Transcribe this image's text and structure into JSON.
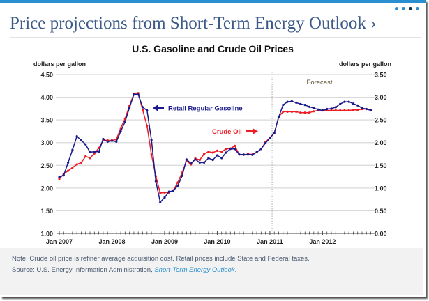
{
  "header": {
    "title": "Price projections from Short-Term Energy Outlook ›",
    "pager_dots": 4,
    "pager_active_index": 2
  },
  "colors": {
    "accent": "#2a8fd0",
    "title": "#3c5a8a",
    "gasoline": "#1a1a8c",
    "crude": "#ee1c24",
    "grid": "#d9d9d9"
  },
  "chart_data": {
    "type": "line",
    "title": "U.S. Gasoline and Crude Oil Prices",
    "ylabel_left": "dollars per gallon",
    "ylabel_right": "dollars per gallon",
    "xlabel": "",
    "x_tick_labels": [
      "Jan 2007",
      "Jan 2008",
      "Jan 2009",
      "Jan 2010",
      "Jan 2011",
      "Jan 2012"
    ],
    "x_range_months": [
      "Jan 2007",
      "Dec 2012"
    ],
    "ylim_left": [
      1.0,
      4.5
    ],
    "ylim_right": [
      0.0,
      3.5
    ],
    "y_ticks_left": [
      "1.00",
      "1.50",
      "2.00",
      "2.50",
      "3.00",
      "3.50",
      "4.00",
      "4.50"
    ],
    "y_ticks_right": [
      "0.00",
      "0.50",
      "1.00",
      "1.50",
      "2.00",
      "2.50",
      "3.00",
      "3.50"
    ],
    "grid": true,
    "forecast_start": "Feb 2011",
    "forecast_label": "Forecast",
    "series": [
      {
        "name": "Retail Regular Gasoline",
        "axis": "left",
        "values": [
          2.24,
          2.28,
          2.56,
          2.84,
          3.14,
          3.05,
          2.96,
          2.79,
          2.8,
          2.8,
          3.08,
          3.02,
          3.04,
          3.02,
          3.25,
          3.46,
          3.77,
          4.06,
          4.06,
          3.78,
          3.71,
          3.06,
          2.15,
          1.69,
          1.79,
          1.92,
          1.94,
          2.05,
          2.27,
          2.63,
          2.54,
          2.63,
          2.56,
          2.56,
          2.66,
          2.62,
          2.72,
          2.66,
          2.78,
          2.86,
          2.86,
          2.74,
          2.74,
          2.74,
          2.73,
          2.79,
          2.86,
          2.99,
          3.1,
          3.21,
          3.56,
          3.83,
          3.9,
          3.91,
          3.88,
          3.85,
          3.83,
          3.79,
          3.76,
          3.73,
          3.71,
          3.74,
          3.75,
          3.78,
          3.85,
          3.9,
          3.9,
          3.86,
          3.82,
          3.76,
          3.74,
          3.71
        ]
      },
      {
        "name": "Crude Oil",
        "axis": "right",
        "values": [
          1.2,
          1.31,
          1.38,
          1.45,
          1.52,
          1.56,
          1.7,
          1.66,
          1.76,
          1.88,
          2.05,
          2.05,
          2.05,
          2.07,
          2.32,
          2.53,
          2.81,
          3.07,
          3.09,
          2.72,
          2.37,
          1.74,
          1.26,
          0.89,
          0.9,
          0.9,
          0.95,
          1.12,
          1.34,
          1.6,
          1.52,
          1.65,
          1.62,
          1.75,
          1.8,
          1.78,
          1.82,
          1.8,
          1.86,
          1.87,
          1.93,
          1.74,
          1.73,
          1.75,
          1.74,
          1.79,
          1.86,
          2.01,
          2.11,
          2.21,
          2.57,
          2.68,
          2.68,
          2.68,
          2.68,
          2.66,
          2.66,
          2.66,
          2.69,
          2.71,
          2.71,
          2.71,
          2.71,
          2.71,
          2.71,
          2.71,
          2.71,
          2.72,
          2.72,
          2.74,
          2.74,
          2.72
        ]
      }
    ],
    "annotations": [
      {
        "text": "Retail Regular Gasoline",
        "series": "Retail Regular Gasoline",
        "arrow": "left"
      },
      {
        "text": "Crude Oil",
        "series": "Crude Oil",
        "arrow": "right"
      }
    ]
  },
  "footer": {
    "note": "Note: Crude oil price is refiner average acquisition cost. Retail prices include State and Federal taxes.",
    "source_prefix": "Source: U.S. Energy Information Administration, ",
    "source_link": "Short-Term Energy Outlook",
    "source_suffix": "."
  }
}
